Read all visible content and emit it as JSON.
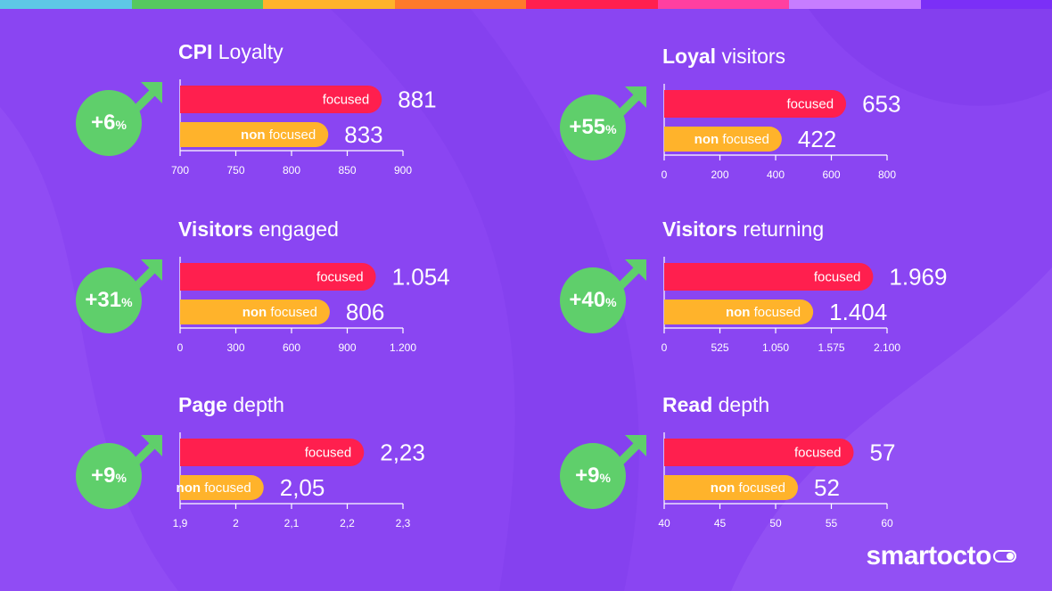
{
  "colors": {
    "background": "#8a45f2",
    "focused": "#ff1f4e",
    "non_focused": "#ffb32b",
    "badge": "#5fcf6b",
    "stripes": [
      "#5ec8e6",
      "#56c95f",
      "#ffb32b",
      "#ff7a2b",
      "#ff1f4e",
      "#ff3fa0",
      "#c77dff",
      "#7b2ff7"
    ]
  },
  "panels": [
    {
      "title_bold": "CPI",
      "title_rest": "Loyalty",
      "badge": {
        "num": "+6",
        "pct": "%"
      },
      "chart_data": {
        "type": "bar",
        "orientation": "horizontal",
        "categories": [
          "focused",
          "non focused"
        ],
        "values": [
          881,
          833
        ],
        "value_labels": [
          "881",
          "833"
        ],
        "xlim": [
          700,
          900
        ],
        "ticks": [
          700,
          750,
          800,
          850,
          900
        ],
        "tick_labels": [
          "700",
          "750",
          "800",
          "850",
          "900"
        ]
      }
    },
    {
      "title_bold": "Loyal",
      "title_rest": "visitors",
      "badge": {
        "num": "+55",
        "pct": "%"
      },
      "chart_data": {
        "type": "bar",
        "orientation": "horizontal",
        "categories": [
          "focused",
          "non focused"
        ],
        "values": [
          653,
          422
        ],
        "value_labels": [
          "653",
          "422"
        ],
        "xlim": [
          0,
          800
        ],
        "ticks": [
          0,
          200,
          400,
          600,
          800
        ],
        "tick_labels": [
          "0",
          "200",
          "400",
          "600",
          "800"
        ]
      }
    },
    {
      "title_bold": "Visitors",
      "title_rest": "engaged",
      "badge": {
        "num": "+31",
        "pct": "%"
      },
      "chart_data": {
        "type": "bar",
        "orientation": "horizontal",
        "categories": [
          "focused",
          "non focused"
        ],
        "values": [
          1054,
          806
        ],
        "value_labels": [
          "1.054",
          "806"
        ],
        "xlim": [
          0,
          1200
        ],
        "ticks": [
          0,
          300,
          600,
          900,
          1200
        ],
        "tick_labels": [
          "0",
          "300",
          "600",
          "900",
          "1.200"
        ]
      }
    },
    {
      "title_bold": "Visitors",
      "title_rest": "returning",
      "badge": {
        "num": "+40",
        "pct": "%"
      },
      "chart_data": {
        "type": "bar",
        "orientation": "horizontal",
        "categories": [
          "focused",
          "non focused"
        ],
        "values": [
          1969,
          1404
        ],
        "value_labels": [
          "1.969",
          "1.404"
        ],
        "xlim": [
          0,
          2100
        ],
        "ticks": [
          0,
          525,
          1050,
          1575,
          2100
        ],
        "tick_labels": [
          "0",
          "525",
          "1.050",
          "1.575",
          "2.100"
        ]
      }
    },
    {
      "title_bold": "Page",
      "title_rest": "depth",
      "badge": {
        "num": "+9",
        "pct": "%"
      },
      "chart_data": {
        "type": "bar",
        "orientation": "horizontal",
        "categories": [
          "focused",
          "non focused"
        ],
        "values": [
          2.23,
          2.05
        ],
        "value_labels": [
          "2,23",
          "2,05"
        ],
        "xlim": [
          1.9,
          2.3
        ],
        "ticks": [
          1.9,
          2.0,
          2.1,
          2.2,
          2.3
        ],
        "tick_labels": [
          "1,9",
          "2",
          "2,1",
          "2,2",
          "2,3"
        ]
      }
    },
    {
      "title_bold": "Read",
      "title_rest": "depth",
      "badge": {
        "num": "+9",
        "pct": "%"
      },
      "chart_data": {
        "type": "bar",
        "orientation": "horizontal",
        "categories": [
          "focused",
          "non focused"
        ],
        "values": [
          57,
          52
        ],
        "value_labels": [
          "57",
          "52"
        ],
        "xlim": [
          40,
          60
        ],
        "ticks": [
          40,
          45,
          50,
          55,
          60
        ],
        "tick_labels": [
          "40",
          "45",
          "50",
          "55",
          "60"
        ]
      }
    }
  ],
  "logo": {
    "text": "smartocto"
  }
}
